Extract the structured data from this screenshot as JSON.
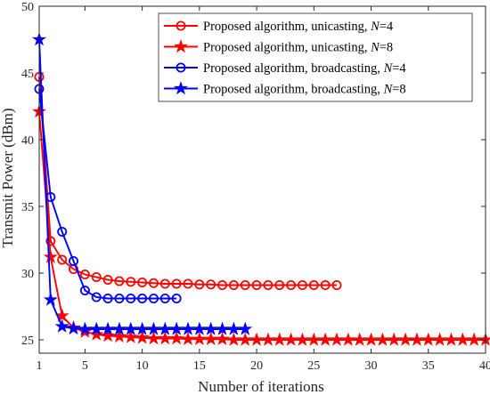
{
  "chart_data": {
    "type": "line",
    "title": "",
    "xlabel": "Number of  iterations",
    "ylabel": "Transmit Power (dBm)",
    "xlim": [
      1,
      40
    ],
    "ylim": [
      24,
      50
    ],
    "xticks": [
      1,
      5,
      10,
      15,
      20,
      25,
      30,
      35,
      40
    ],
    "yticks": [
      25,
      30,
      35,
      40,
      45,
      50
    ],
    "grid": false,
    "legend_position": "top-right",
    "legend_suffix_var": "N",
    "series": [
      {
        "name": "Proposed algorithm, unicasting, N=4",
        "legend_prefix": "Proposed algorithm, unicasting, ",
        "legend_value": "=4",
        "color": "#ff0000",
        "marker": "circle",
        "x": [
          1,
          2,
          3,
          4,
          5,
          6,
          7,
          8,
          9,
          10,
          11,
          12,
          13,
          14,
          15,
          16,
          17,
          18,
          19,
          20,
          21,
          22,
          23,
          24,
          25,
          26,
          27
        ],
        "y": [
          44.7,
          32.4,
          31.0,
          30.3,
          29.9,
          29.7,
          29.5,
          29.4,
          29.35,
          29.3,
          29.25,
          29.2,
          29.2,
          29.2,
          29.15,
          29.15,
          29.1,
          29.1,
          29.1,
          29.1,
          29.1,
          29.1,
          29.1,
          29.1,
          29.1,
          29.1,
          29.1
        ]
      },
      {
        "name": "Proposed algorithm, unicasting, N=8",
        "legend_prefix": "Proposed algorithm, unicasting, ",
        "legend_value": "=8",
        "color": "#ff0000",
        "marker": "star",
        "x": [
          1,
          2,
          3,
          4,
          5,
          6,
          7,
          8,
          9,
          10,
          11,
          12,
          13,
          14,
          15,
          16,
          17,
          18,
          19,
          20,
          21,
          22,
          23,
          24,
          25,
          26,
          27,
          28,
          29,
          30,
          31,
          32,
          33,
          34,
          35,
          36,
          37,
          38,
          39,
          40
        ],
        "y": [
          42.1,
          31.2,
          26.8,
          25.9,
          25.6,
          25.4,
          25.3,
          25.25,
          25.2,
          25.15,
          25.1,
          25.1,
          25.1,
          25.05,
          25.05,
          25.05,
          25.05,
          25.0,
          25.0,
          25.0,
          25.0,
          25.0,
          25.0,
          25.0,
          25.0,
          25.0,
          25.0,
          25.0,
          25.0,
          25.0,
          25.0,
          25.0,
          25.0,
          25.0,
          25.0,
          25.0,
          25.0,
          25.0,
          25.0,
          25.0
        ]
      },
      {
        "name": "Proposed algorithm, broadcasting, N=4",
        "legend_prefix": "Proposed algorithm, broadcasting, ",
        "legend_value": "=4",
        "color": "#0000ff",
        "marker": "circle",
        "x": [
          1,
          2,
          3,
          4,
          5,
          6,
          7,
          8,
          9,
          10,
          11,
          12,
          13
        ],
        "y": [
          43.8,
          35.7,
          33.1,
          30.9,
          28.7,
          28.2,
          28.1,
          28.1,
          28.1,
          28.1,
          28.1,
          28.1,
          28.1
        ]
      },
      {
        "name": "Proposed algorithm, broadcasting, N=8",
        "legend_prefix": "Proposed algorithm, broadcasting, ",
        "legend_value": "=8",
        "color": "#0000ff",
        "marker": "star",
        "x": [
          1,
          2,
          3,
          4,
          5,
          6,
          7,
          8,
          9,
          10,
          11,
          12,
          13,
          14,
          15,
          16,
          17,
          18,
          19
        ],
        "y": [
          47.5,
          28.0,
          26.0,
          25.85,
          25.8,
          25.8,
          25.8,
          25.8,
          25.8,
          25.8,
          25.8,
          25.8,
          25.8,
          25.8,
          25.8,
          25.8,
          25.8,
          25.8,
          25.8
        ]
      }
    ]
  }
}
